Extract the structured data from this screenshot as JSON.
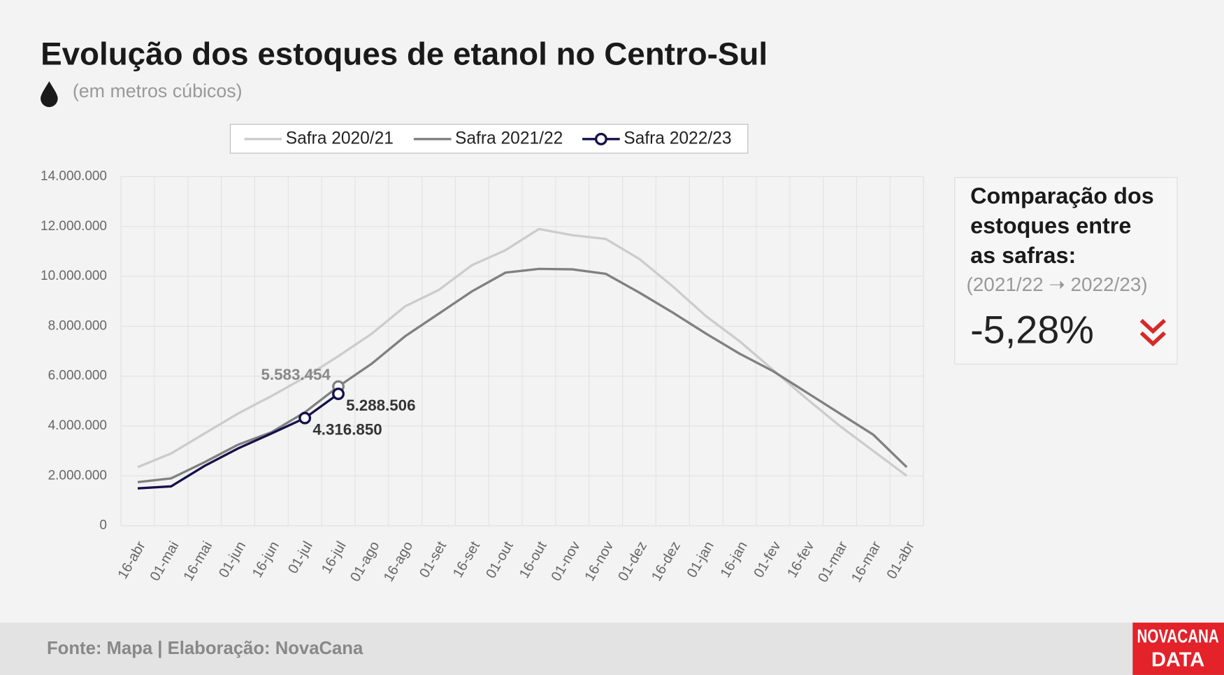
{
  "chart_data": {
    "type": "line",
    "title": "Evolução dos estoques de etanol no Centro-Sul",
    "subtitle": "(em metros cúbicos)",
    "categories": [
      "16-abr",
      "01-mai",
      "16-mai",
      "01-jun",
      "16-jun",
      "01-jul",
      "16-jul",
      "01-ago",
      "16-ago",
      "01-set",
      "16-set",
      "01-out",
      "16-out",
      "01-nov",
      "16-nov",
      "01-dez",
      "16-dez",
      "01-jan",
      "16-jan",
      "01-fev",
      "16-fev",
      "01-mar",
      "16-mar",
      "01-abr"
    ],
    "series": [
      {
        "name": "Safra 2020/21",
        "color": "#cccccc",
        "values": [
          2350000,
          2900000,
          3700000,
          4500000,
          5200000,
          5950000,
          6800000,
          7700000,
          8800000,
          9450000,
          10450000,
          11050000,
          11900000,
          11650000,
          11500000,
          10700000,
          9600000,
          8400000,
          7400000,
          6250000,
          5100000,
          4000000,
          3000000,
          2000000
        ]
      },
      {
        "name": "Safra 2021/22",
        "color": "#808080",
        "values": [
          1750000,
          1900000,
          2550000,
          3250000,
          3750000,
          4550000,
          5583454,
          6500000,
          7600000,
          8500000,
          9400000,
          10150000,
          10300000,
          10280000,
          10100000,
          9350000,
          8550000,
          7700000,
          6900000,
          6200000,
          5350000,
          4500000,
          3650000,
          2350000
        ],
        "value_labels": [
          null,
          null,
          null,
          null,
          null,
          null,
          "5.583.454",
          null,
          null,
          null,
          null,
          null,
          null,
          null,
          null,
          null,
          null,
          null,
          null,
          null,
          null,
          null,
          null,
          null
        ]
      },
      {
        "name": "Safra 2022/23",
        "color": "#14104a",
        "values": [
          1500000,
          1580000,
          2400000,
          3100000,
          3700000,
          4316850,
          5288506,
          null,
          null,
          null,
          null,
          null,
          null,
          null,
          null,
          null,
          null,
          null,
          null,
          null,
          null,
          null,
          null,
          null
        ],
        "value_labels": [
          null,
          null,
          null,
          null,
          null,
          "4.316.850",
          "5.288.506",
          null,
          null,
          null,
          null,
          null,
          null,
          null,
          null,
          null,
          null,
          null,
          null,
          null,
          null,
          null,
          null,
          null
        ]
      }
    ],
    "ylim": [
      0,
      14000000
    ],
    "yticks": [
      0,
      {
        "value": 2000000,
        "label": "2.000.000"
      },
      {
        "value": 4000000,
        "label": "4.000.000"
      },
      {
        "value": 6000000,
        "label": "6.000.000"
      },
      {
        "value": 8000000,
        "label": "8.000.000"
      },
      {
        "value": 10000000,
        "label": "10.000.000"
      },
      {
        "value": 12000000,
        "label": "12.000.000"
      },
      {
        "value": 14000000,
        "label": "14.000.000"
      }
    ],
    "grid": true,
    "legend": "top"
  },
  "comparison": {
    "title_lines": [
      "Comparação dos",
      "estoques entre",
      "as safras:"
    ],
    "period": "(2021/22 ➝ 2022/23)",
    "value": "-5,28%"
  },
  "footer": {
    "source": "Fonte: Mapa | Elaboração: NovaCana",
    "logo_top": "NOVACANA",
    "logo_bottom": "DATA"
  }
}
